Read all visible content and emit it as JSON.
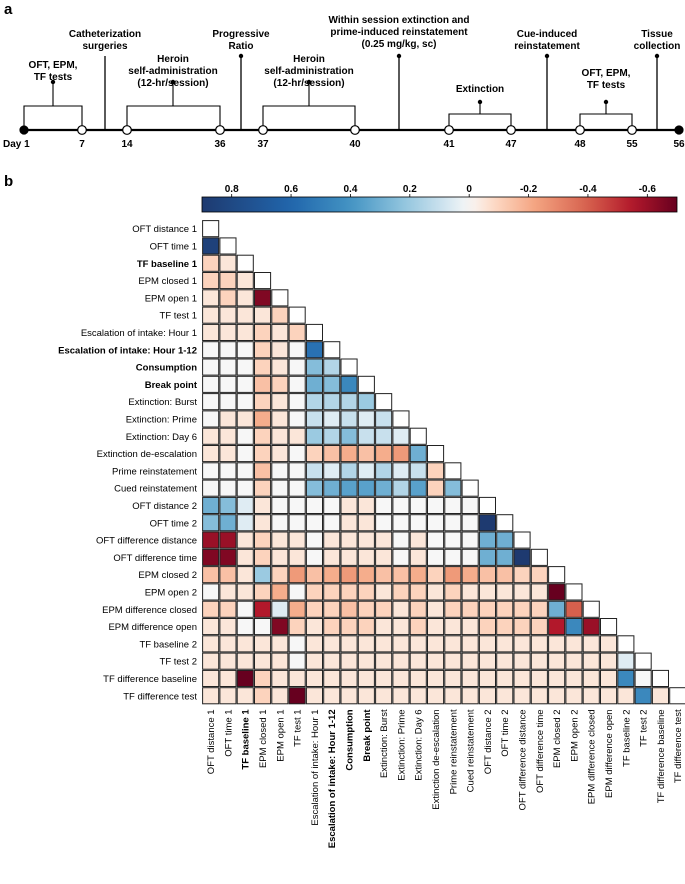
{
  "panel_labels": {
    "a": "a",
    "b": "b"
  },
  "timeline": {
    "day_prefix": "Day",
    "ticks": [
      {
        "day": "1"
      },
      {
        "day": "7"
      },
      {
        "day": "14"
      },
      {
        "day": "36"
      },
      {
        "day": "37"
      },
      {
        "day": "40"
      },
      {
        "day": "41"
      },
      {
        "day": "47"
      },
      {
        "day": "48"
      },
      {
        "day": "55"
      },
      {
        "day": "56"
      }
    ],
    "events": [
      {
        "lines": [
          "OFT, EPM,",
          "TF tests"
        ]
      },
      {
        "lines": [
          "Catheterization",
          "surgeries"
        ]
      },
      {
        "lines": [
          "Heroin",
          "self-administration",
          "(12-hr/session)"
        ]
      },
      {
        "lines": [
          "Progressive",
          "Ratio"
        ]
      },
      {
        "lines": [
          "Heroin",
          "self-administration",
          "(12-hr/session)"
        ]
      },
      {
        "lines": [
          "Within session extinction and",
          "prime-induced reinstatement",
          "(0.25 mg/kg, sc)"
        ]
      },
      {
        "lines": [
          "Extinction"
        ]
      },
      {
        "lines": [
          "Cue-induced",
          "reinstatement"
        ]
      },
      {
        "lines": [
          "OFT, EPM,",
          "TF tests"
        ]
      },
      {
        "lines": [
          "Tissue",
          "collection"
        ]
      }
    ]
  },
  "chart_data": {
    "type": "heatmap",
    "title": "",
    "colorbar": {
      "reversed": true,
      "range": [
        -0.7,
        0.9
      ],
      "tick_values": [
        0.8,
        0.6,
        0.4,
        0.2,
        0,
        -0.2,
        -0.4,
        -0.6
      ],
      "tick_labels": [
        "0.8",
        "0.6",
        "0.4",
        "0.2",
        "0",
        "-0.2",
        "-0.4",
        "-0.6"
      ],
      "positive_color": "#1e3a70",
      "negative_color": "#7a1020",
      "zero_color": "#f7f7f7"
    },
    "variables": [
      {
        "name": "OFT distance 1",
        "bold": false
      },
      {
        "name": "OFT time 1",
        "bold": false
      },
      {
        "name": "TF baseline 1",
        "bold": true
      },
      {
        "name": "EPM closed 1",
        "bold": false
      },
      {
        "name": "EPM open 1",
        "bold": false
      },
      {
        "name": "TF test 1",
        "bold": false
      },
      {
        "name": "Escalation of intake: Hour 1",
        "bold": false
      },
      {
        "name": "Escalation of intake: Hour 1-12",
        "bold": true
      },
      {
        "name": "Consumption",
        "bold": true
      },
      {
        "name": "Break point",
        "bold": true
      },
      {
        "name": "Extinction: Burst",
        "bold": false
      },
      {
        "name": "Extinction: Prime",
        "bold": false
      },
      {
        "name": "Extinction: Day 6",
        "bold": false
      },
      {
        "name": "Extinction de-escalation",
        "bold": false
      },
      {
        "name": "Prime reinstatement",
        "bold": false
      },
      {
        "name": "Cued reinstatement",
        "bold": false
      },
      {
        "name": "OFT distance 2",
        "bold": false
      },
      {
        "name": "OFT time 2",
        "bold": false
      },
      {
        "name": "OFT difference distance",
        "bold": false
      },
      {
        "name": "OFT difference time",
        "bold": false
      },
      {
        "name": "EPM closed 2",
        "bold": false
      },
      {
        "name": "EPM open 2",
        "bold": false
      },
      {
        "name": "EPM difference closed",
        "bold": false
      },
      {
        "name": "EPM difference open",
        "bold": false
      },
      {
        "name": "TF baseline 2",
        "bold": false
      },
      {
        "name": "TF test 2",
        "bold": false
      },
      {
        "name": "TF difference baseline",
        "bold": false
      },
      {
        "name": "TF difference test",
        "bold": false
      }
    ],
    "lower_triangle": [
      [],
      [
        0.85
      ],
      [
        -0.1,
        -0.05
      ],
      [
        -0.1,
        -0.1,
        -0.05
      ],
      [
        -0.05,
        -0.1,
        -0.05,
        -0.65
      ],
      [
        -0.05,
        -0.05,
        -0.05,
        -0.05,
        -0.1
      ],
      [
        -0.05,
        -0.05,
        -0.05,
        -0.1,
        -0.05,
        -0.1
      ],
      [
        0.0,
        0.0,
        0.0,
        -0.1,
        -0.05,
        0.0,
        0.55
      ],
      [
        0.0,
        0.0,
        0.0,
        -0.1,
        -0.05,
        0.0,
        0.25,
        0.15
      ],
      [
        0.0,
        0.0,
        0.0,
        -0.15,
        -0.1,
        0.0,
        0.3,
        0.25,
        0.45
      ],
      [
        0.0,
        0.0,
        0.0,
        -0.1,
        -0.05,
        0.0,
        0.15,
        0.15,
        0.15,
        0.2
      ],
      [
        0.0,
        -0.05,
        -0.05,
        -0.2,
        -0.05,
        0.0,
        0.1,
        0.05,
        0.1,
        0.05,
        0.1
      ],
      [
        -0.05,
        -0.05,
        0.0,
        -0.1,
        -0.05,
        -0.05,
        0.2,
        0.15,
        0.25,
        0.1,
        0.1,
        0.05
      ],
      [
        -0.05,
        -0.05,
        0.0,
        -0.1,
        -0.05,
        0.0,
        -0.1,
        -0.15,
        -0.2,
        -0.15,
        -0.2,
        -0.25,
        0.3
      ],
      [
        0.0,
        0.0,
        0.0,
        -0.15,
        0.0,
        0.0,
        0.1,
        0.05,
        0.15,
        0.05,
        0.15,
        0.05,
        0.1,
        -0.1
      ],
      [
        0.0,
        0.0,
        0.0,
        -0.1,
        0.0,
        0.0,
        0.25,
        0.3,
        0.35,
        0.35,
        0.3,
        0.15,
        0.35,
        -0.1,
        0.25
      ],
      [
        0.3,
        0.25,
        0.05,
        -0.05,
        0.0,
        0.0,
        0.0,
        0.0,
        -0.05,
        -0.05,
        0.0,
        0.0,
        0.0,
        0.0,
        0.0,
        0.0
      ],
      [
        0.25,
        0.3,
        0.05,
        -0.05,
        0.0,
        0.0,
        0.0,
        0.0,
        -0.05,
        -0.05,
        0.0,
        0.0,
        0.0,
        0.0,
        0.0,
        0.0,
        0.9
      ],
      [
        -0.6,
        -0.6,
        -0.05,
        -0.1,
        -0.05,
        -0.05,
        0.0,
        -0.05,
        -0.05,
        -0.05,
        -0.05,
        0.0,
        -0.05,
        0.0,
        0.0,
        0.0,
        0.3,
        0.3
      ],
      [
        -0.65,
        -0.65,
        -0.05,
        -0.1,
        -0.05,
        -0.05,
        0.0,
        -0.05,
        -0.05,
        -0.05,
        -0.05,
        0.0,
        -0.05,
        0.0,
        0.0,
        0.0,
        0.3,
        0.3,
        0.9
      ],
      [
        -0.15,
        -0.15,
        -0.05,
        0.2,
        -0.1,
        -0.25,
        -0.15,
        -0.2,
        -0.25,
        -0.2,
        -0.15,
        -0.15,
        -0.2,
        -0.1,
        -0.25,
        -0.2,
        -0.15,
        -0.15,
        -0.1,
        -0.1
      ],
      [
        0.0,
        -0.05,
        -0.05,
        -0.1,
        -0.2,
        0.0,
        -0.1,
        -0.1,
        -0.1,
        -0.1,
        -0.05,
        -0.1,
        -0.1,
        -0.05,
        -0.1,
        -0.05,
        -0.05,
        -0.05,
        -0.05,
        -0.05,
        -0.7
      ],
      [
        -0.1,
        -0.1,
        0.0,
        -0.55,
        0.05,
        -0.2,
        -0.1,
        -0.1,
        -0.15,
        -0.1,
        -0.1,
        -0.05,
        -0.1,
        -0.05,
        -0.1,
        -0.1,
        -0.1,
        -0.1,
        -0.1,
        -0.1,
        0.3,
        -0.4
      ],
      [
        -0.05,
        -0.05,
        0.0,
        0.0,
        -0.65,
        -0.1,
        -0.05,
        -0.1,
        -0.1,
        -0.1,
        -0.05,
        -0.05,
        -0.1,
        -0.05,
        -0.05,
        -0.05,
        -0.1,
        -0.1,
        -0.1,
        -0.1,
        -0.55,
        0.45,
        -0.6
      ],
      [
        -0.05,
        -0.05,
        -0.05,
        -0.05,
        -0.05,
        0.0,
        -0.05,
        -0.05,
        -0.05,
        -0.05,
        -0.05,
        -0.05,
        -0.05,
        -0.05,
        -0.05,
        -0.05,
        -0.05,
        -0.05,
        -0.05,
        -0.05,
        -0.05,
        -0.05,
        -0.05,
        -0.05
      ],
      [
        -0.05,
        -0.05,
        -0.05,
        -0.05,
        -0.05,
        0.0,
        -0.05,
        -0.05,
        -0.05,
        -0.05,
        -0.05,
        -0.05,
        -0.05,
        -0.05,
        -0.05,
        -0.05,
        -0.05,
        -0.05,
        -0.05,
        -0.05,
        -0.05,
        -0.05,
        -0.05,
        -0.05,
        0.05
      ],
      [
        -0.05,
        -0.05,
        -0.75,
        -0.1,
        -0.05,
        -0.05,
        -0.05,
        -0.05,
        -0.05,
        -0.05,
        -0.05,
        -0.05,
        -0.05,
        -0.05,
        -0.05,
        -0.05,
        -0.05,
        -0.05,
        -0.05,
        -0.05,
        -0.05,
        -0.05,
        -0.05,
        -0.05,
        0.45,
        0.0
      ],
      [
        -0.05,
        -0.05,
        -0.05,
        -0.1,
        -0.05,
        -0.75,
        -0.05,
        -0.05,
        -0.05,
        -0.05,
        -0.05,
        -0.05,
        -0.05,
        -0.05,
        -0.05,
        -0.05,
        -0.05,
        -0.05,
        -0.05,
        -0.05,
        -0.05,
        -0.05,
        -0.05,
        -0.05,
        -0.05,
        0.45,
        -0.05
      ]
    ]
  }
}
